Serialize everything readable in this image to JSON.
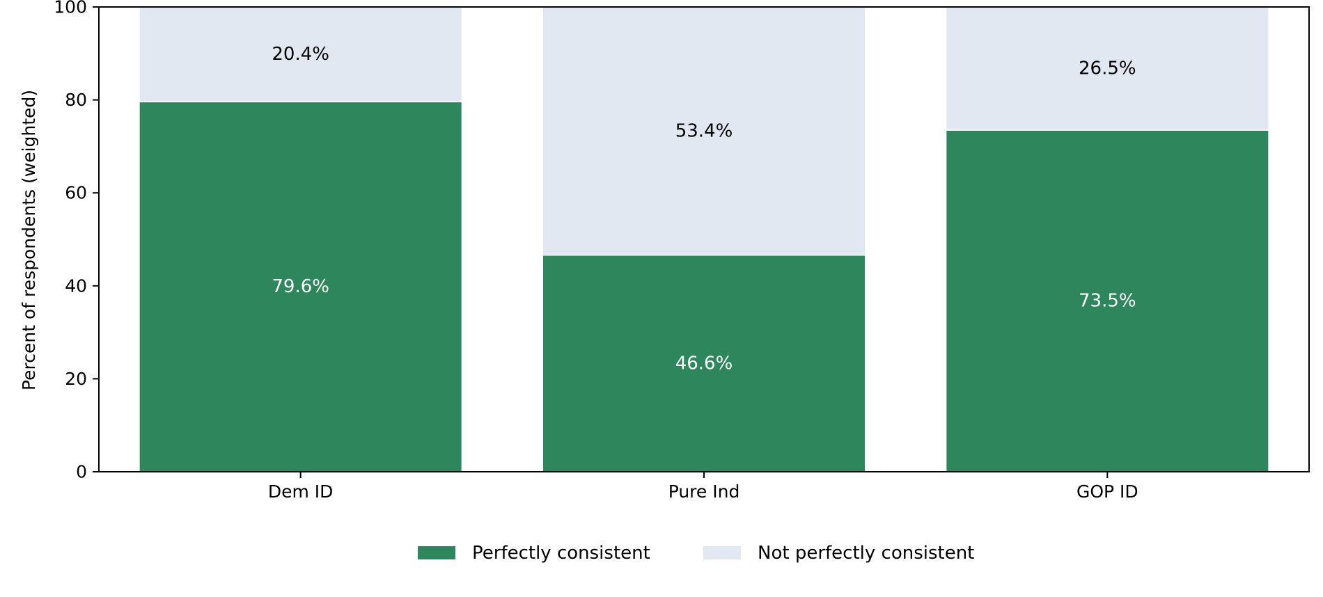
{
  "chart_data": {
    "type": "bar",
    "stacked": true,
    "categories": [
      "Dem ID",
      "Pure Ind",
      "GOP ID"
    ],
    "series": [
      {
        "name": "Perfectly consistent",
        "values": [
          79.6,
          46.6,
          73.5
        ],
        "labels": [
          "79.6%",
          "46.6%",
          "73.5%"
        ],
        "color": "#2e865c",
        "label_color": "#ffffff"
      },
      {
        "name": "Not perfectly consistent",
        "values": [
          20.4,
          53.4,
          26.5
        ],
        "labels": [
          "20.4%",
          "53.4%",
          "26.5%"
        ],
        "color": "#e1e8f1",
        "label_color": "#000000"
      }
    ],
    "ylabel": "Percent of respondents (weighted)",
    "ylim": [
      0,
      100
    ],
    "yticks": [
      0,
      20,
      40,
      60,
      80,
      100
    ],
    "grid": false,
    "legend_position": "bottom-center"
  }
}
